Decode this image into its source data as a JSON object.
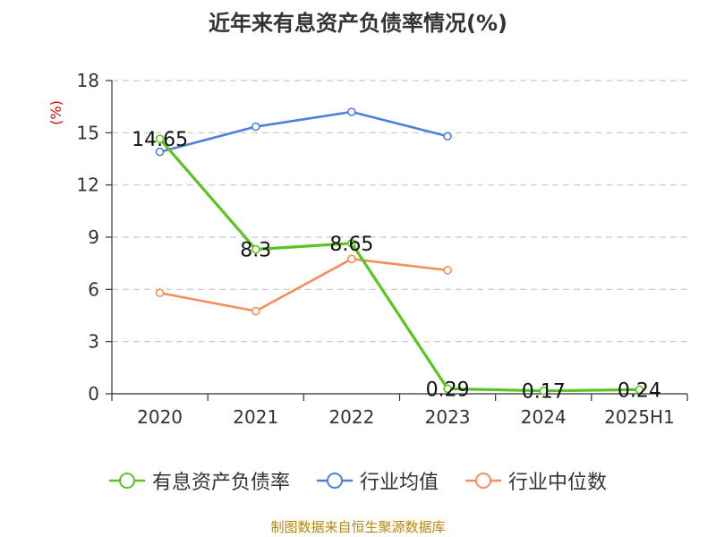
{
  "title": "近年来有息资产负债率情况(%)",
  "source": "制图数据来自恒生聚源数据库",
  "colors": {
    "series_0": "#5ac423",
    "series_1": "#4e7fd9",
    "series_2": "#f58d5c",
    "axis": "#333333",
    "grid": "#c8c8c8",
    "ylabel": "#e00000"
  },
  "chart_data": {
    "type": "line",
    "title": "近年来有息资产负债率情况(%)",
    "xlabel": "",
    "ylabel": "(%)",
    "categories": [
      "2020",
      "2021",
      "2022",
      "2023",
      "2024",
      "2025H1"
    ],
    "ylim": [
      0,
      18
    ],
    "yticks": [
      "0",
      "3",
      "6",
      "9",
      "12",
      "15",
      "18"
    ],
    "grid": true,
    "legend_position": "bottom",
    "series": [
      {
        "name": "有息资产负债率",
        "values": [
          14.65,
          8.3,
          8.65,
          0.29,
          0.17,
          0.24
        ],
        "labels": [
          "14.65",
          "8.3",
          "8.65",
          "0.29",
          "0.17",
          "0.24"
        ]
      },
      {
        "name": "行业均值",
        "values": [
          13.9,
          15.35,
          16.2,
          14.8,
          null,
          null
        ]
      },
      {
        "name": "行业中位数",
        "values": [
          5.8,
          4.75,
          7.75,
          7.1,
          null,
          null
        ]
      }
    ]
  }
}
